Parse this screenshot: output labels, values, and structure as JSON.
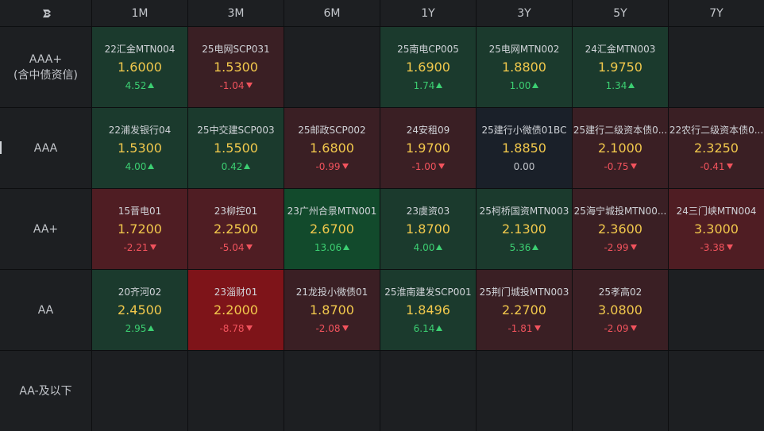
{
  "colors": {
    "panel": "#1d1f22",
    "green_light": "#1b3a2d",
    "green_strong": "#124a2c",
    "red_light": "#3a1f24",
    "red_medium": "#4f1d23",
    "red_strong": "#7e1419",
    "neutral": "#1a2029",
    "rate": "#f1c84c",
    "up": "#3ccf72",
    "down": "#f2535d"
  },
  "columns": [
    "1M",
    "3M",
    "6M",
    "1Y",
    "3Y",
    "5Y",
    "7Y"
  ],
  "rows": [
    {
      "label": [
        "AAA+",
        "(含中债资信)"
      ],
      "cells": [
        {
          "name": "22汇金MTN004",
          "rate": "1.6000",
          "chg": "4.52",
          "dir": "up",
          "tone": "green_light"
        },
        {
          "name": "25电网SCP031",
          "rate": "1.5300",
          "chg": "-1.04",
          "dir": "down",
          "tone": "red_light"
        },
        null,
        {
          "name": "25南电CP005",
          "rate": "1.6900",
          "chg": "1.74",
          "dir": "up",
          "tone": "green_light"
        },
        {
          "name": "25电网MTN002",
          "rate": "1.8800",
          "chg": "1.00",
          "dir": "up",
          "tone": "green_light"
        },
        {
          "name": "24汇金MTN003",
          "rate": "1.9750",
          "chg": "1.34",
          "dir": "up",
          "tone": "green_light"
        },
        null
      ]
    },
    {
      "label": [
        "AAA"
      ],
      "cells": [
        {
          "name": "22浦发银行04",
          "rate": "1.5300",
          "chg": "4.00",
          "dir": "up",
          "tone": "green_light"
        },
        {
          "name": "25中交建SCP003",
          "rate": "1.5500",
          "chg": "0.42",
          "dir": "up",
          "tone": "green_light"
        },
        {
          "name": "25邮政SCP002",
          "rate": "1.6800",
          "chg": "-0.99",
          "dir": "down",
          "tone": "red_light"
        },
        {
          "name": "24安租09",
          "rate": "1.9700",
          "chg": "-1.00",
          "dir": "down",
          "tone": "red_light"
        },
        {
          "name": "25建行小微债01BC",
          "rate": "1.8850",
          "chg": "0.00",
          "dir": "flat",
          "tone": "neutral"
        },
        {
          "name": "25建行二级资本债0...",
          "rate": "2.1000",
          "chg": "-0.75",
          "dir": "down",
          "tone": "red_light"
        },
        {
          "name": "22农行二级资本债0...",
          "rate": "2.3250",
          "chg": "-0.41",
          "dir": "down",
          "tone": "red_light"
        }
      ]
    },
    {
      "label": [
        "AA+"
      ],
      "cells": [
        {
          "name": "15晋电01",
          "rate": "1.7200",
          "chg": "-2.21",
          "dir": "down",
          "tone": "red_medium"
        },
        {
          "name": "23柳控01",
          "rate": "2.2500",
          "chg": "-5.04",
          "dir": "down",
          "tone": "red_medium"
        },
        {
          "name": "23广州合景MTN001",
          "rate": "2.6700",
          "chg": "13.06",
          "dir": "up",
          "tone": "green_strong"
        },
        {
          "name": "23虞资03",
          "rate": "1.8700",
          "chg": "4.00",
          "dir": "up",
          "tone": "green_light"
        },
        {
          "name": "25柯桥国资MTN003",
          "rate": "2.1300",
          "chg": "5.36",
          "dir": "up",
          "tone": "green_light"
        },
        {
          "name": "25海宁城投MTN00...",
          "rate": "2.3600",
          "chg": "-2.99",
          "dir": "down",
          "tone": "red_light"
        },
        {
          "name": "24三门峡MTN004",
          "rate": "3.3000",
          "chg": "-3.38",
          "dir": "down",
          "tone": "red_medium"
        }
      ]
    },
    {
      "label": [
        "AA"
      ],
      "cells": [
        {
          "name": "20齐河02",
          "rate": "2.4500",
          "chg": "2.95",
          "dir": "up",
          "tone": "green_light"
        },
        {
          "name": "23淄财01",
          "rate": "2.2000",
          "chg": "-8.78",
          "dir": "down",
          "tone": "red_strong"
        },
        {
          "name": "21龙投小微债01",
          "rate": "1.8700",
          "chg": "-2.08",
          "dir": "down",
          "tone": "red_light"
        },
        {
          "name": "25淮南建发SCP001",
          "rate": "1.8496",
          "chg": "6.14",
          "dir": "up",
          "tone": "green_light"
        },
        {
          "name": "25荆门城投MTN003",
          "rate": "2.2700",
          "chg": "-1.81",
          "dir": "down",
          "tone": "red_light"
        },
        {
          "name": "25孝高02",
          "rate": "3.0800",
          "chg": "-2.09",
          "dir": "down",
          "tone": "red_light"
        },
        null
      ]
    },
    {
      "label": [
        "AA-及以下"
      ],
      "cells": [
        null,
        null,
        null,
        null,
        null,
        null,
        null
      ]
    }
  ]
}
